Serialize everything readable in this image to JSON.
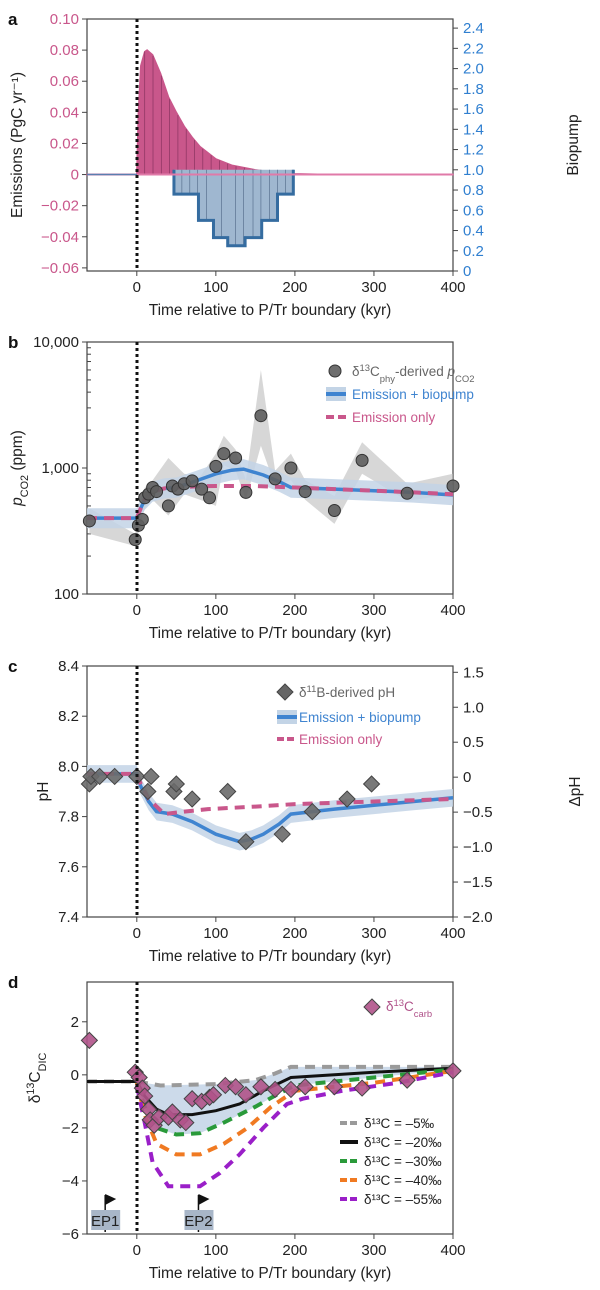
{
  "figure_colors": {
    "emission": "#c9578b",
    "biopump": "#3f84d0",
    "band": "#c3d4e6",
    "data_gray": "#5e5e5e",
    "carb": "#b0538a",
    "axis_left_a": "#c9578b",
    "axis_right_a": "#2f7fd0"
  },
  "chart_data": [
    {
      "type": "area",
      "panel_label": "a",
      "xlabel": "Time relative to P/Tr boundary (kyr)",
      "ylabel": "Emissions (PgC yr⁻¹)",
      "ylabel_right": "Biopump",
      "xlim": [
        -63,
        400
      ],
      "ylim": [
        -0.062,
        0.1
      ],
      "ylim_right": [
        0,
        2.49
      ],
      "xticks": [
        "0",
        "100",
        "200",
        "300",
        "400"
      ],
      "xtick_values": [
        0,
        100,
        200,
        300,
        400
      ],
      "yticks": [
        "0.10",
        "0.08",
        "0.06",
        "0.04",
        "0.02",
        "0",
        "−0.02",
        "−0.04",
        "−0.06"
      ],
      "ytick_values": [
        0.1,
        0.08,
        0.06,
        0.04,
        0.02,
        0,
        -0.02,
        -0.04,
        -0.06
      ],
      "yticks_right": [
        "2.4",
        "2.2",
        "2.0",
        "1.8",
        "1.6",
        "1.4",
        "1.2",
        "1.0",
        "0.8",
        "0.6",
        "0.4",
        "0.2",
        "0"
      ],
      "ytick_right_values": [
        2.4,
        2.2,
        2.0,
        1.8,
        1.6,
        1.4,
        1.2,
        1.0,
        0.8,
        0.6,
        0.4,
        0.2,
        0
      ],
      "emissions": {
        "x": [
          -63,
          0,
          2,
          5,
          10,
          13,
          20,
          30,
          40,
          50,
          60,
          70,
          80,
          100,
          120,
          150,
          180,
          200,
          250,
          400
        ],
        "y": [
          0,
          0,
          0.04,
          0.07,
          0.079,
          0.08,
          0.077,
          0.065,
          0.05,
          0.04,
          0.031,
          0.024,
          0.018,
          0.01,
          0.006,
          0.003,
          0.001,
          0.0005,
          0,
          0
        ]
      },
      "biopump_steps": {
        "edges": [
          47,
          78,
          97,
          115,
          137,
          158,
          178,
          198
        ],
        "values": [
          0.76,
          0.5,
          0.33,
          0.25,
          0.33,
          0.5,
          0.76
        ]
      },
      "biopump_baseline": 1.0
    },
    {
      "type": "scatter",
      "panel_label": "b",
      "xlabel": "Time relative to P/Tr boundary (kyr)",
      "ylabel": [
        {
          "t": "p",
          "s": "i"
        },
        {
          "t": "CO2",
          "s": "sub"
        },
        {
          "t": " (ppm)"
        }
      ],
      "yscale": "log",
      "xlim": [
        -63,
        400
      ],
      "ylim": [
        100,
        10000
      ],
      "xticks": [
        "0",
        "100",
        "200",
        "300",
        "400"
      ],
      "xtick_values": [
        0,
        100,
        200,
        300,
        400
      ],
      "yticks": [
        "10,000",
        "1,000",
        "100"
      ],
      "ytick_values": [
        10000,
        1000,
        100
      ],
      "legend": [
        {
          "marker": "circle",
          "label": [
            {
              "t": "δ"
            },
            {
              "t": "13",
              "s": "sup"
            },
            {
              "t": "C"
            },
            {
              "t": "phy",
              "s": "sub"
            },
            {
              "t": "-derived "
            },
            {
              "t": "p",
              "s": "i"
            },
            {
              "t": "CO2",
              "s": "sub"
            }
          ]
        },
        {
          "marker": "line-band",
          "label": [
            {
              "t": "Emission + biopump"
            }
          ]
        },
        {
          "marker": "dash",
          "label": [
            {
              "t": "Emission only"
            }
          ]
        }
      ],
      "data_points": {
        "x": [
          -60,
          -2,
          2,
          7,
          10,
          15,
          20,
          25,
          40,
          45,
          52,
          60,
          70,
          82,
          92,
          100,
          110,
          125,
          138,
          157,
          175,
          195,
          213,
          250,
          285,
          342,
          400
        ],
        "y": [
          380,
          270,
          350,
          390,
          580,
          620,
          700,
          650,
          500,
          720,
          680,
          750,
          790,
          680,
          580,
          1030,
          1300,
          1200,
          640,
          2600,
          820,
          1000,
          650,
          460,
          1150,
          630,
          720
        ]
      },
      "data_range": {
        "x": [
          -60,
          -2,
          10,
          20,
          40,
          60,
          80,
          100,
          110,
          125,
          138,
          157,
          175,
          195,
          213,
          250,
          285,
          342,
          400
        ],
        "low": [
          300,
          240,
          480,
          560,
          420,
          620,
          560,
          500,
          1050,
          950,
          560,
          1500,
          720,
          800,
          560,
          360,
          900,
          550,
          620
        ],
        "high": [
          480,
          300,
          700,
          800,
          1200,
          900,
          850,
          1300,
          1800,
          1400,
          800,
          6000,
          950,
          1300,
          800,
          600,
          1600,
          750,
          900
        ]
      },
      "emission_biopump": {
        "x": [
          -63,
          0,
          5,
          10,
          20,
          35,
          50,
          75,
          100,
          120,
          135,
          160,
          180,
          195,
          250,
          300,
          350,
          400
        ],
        "y": [
          400,
          400,
          480,
          560,
          650,
          690,
          700,
          790,
          900,
          960,
          980,
          880,
          780,
          700,
          680,
          660,
          640,
          610
        ]
      },
      "emission_only": {
        "x": [
          -63,
          0,
          5,
          10,
          20,
          35,
          50,
          75,
          100,
          150,
          200,
          250,
          300,
          350,
          400
        ],
        "y": [
          400,
          400,
          480,
          560,
          650,
          690,
          700,
          715,
          720,
          720,
          700,
          680,
          660,
          640,
          620
        ]
      }
    },
    {
      "type": "scatter",
      "panel_label": "c",
      "xlabel": "Time relative to P/Tr boundary (kyr)",
      "ylabel": "pH",
      "ylabel_right": "ΔpH",
      "xlim": [
        -63,
        400
      ],
      "ylim": [
        7.4,
        8.4
      ],
      "ylim_right": [
        -2.0,
        1.59
      ],
      "xticks": [
        "0",
        "100",
        "200",
        "300",
        "400"
      ],
      "xtick_values": [
        0,
        100,
        200,
        300,
        400
      ],
      "yticks": [
        "8.4",
        "8.2",
        "8.0",
        "7.8",
        "7.6",
        "7.4"
      ],
      "ytick_values": [
        8.4,
        8.2,
        8.0,
        7.8,
        7.6,
        7.4
      ],
      "yticks_right": [
        "1.5",
        "1.0",
        "0.5",
        "0",
        "−0.5",
        "−1.0",
        "−1.5",
        "−2.0"
      ],
      "ytick_right_values": [
        1.5,
        1.0,
        0.5,
        0,
        -0.5,
        -1.0,
        -1.5,
        -2.0
      ],
      "legend": [
        {
          "marker": "diamond",
          "label": [
            {
              "t": "δ"
            },
            {
              "t": "11",
              "s": "sup"
            },
            {
              "t": "B-derived pH"
            }
          ]
        },
        {
          "marker": "line-band",
          "label": [
            {
              "t": "Emission + biopump"
            }
          ]
        },
        {
          "marker": "dash",
          "label": [
            {
              "t": "Emission only"
            }
          ]
        }
      ],
      "data_points": {
        "x": [
          -60,
          -58,
          -47,
          -28,
          0,
          14,
          18,
          47,
          50,
          70,
          115,
          138,
          184,
          222,
          266,
          297
        ],
        "y": [
          7.93,
          7.96,
          7.96,
          7.96,
          7.96,
          7.9,
          7.96,
          7.9,
          7.93,
          7.87,
          7.9,
          7.7,
          7.73,
          7.82,
          7.87,
          7.93
        ]
      },
      "emission_biopump": {
        "x": [
          -63,
          0,
          5,
          15,
          25,
          45,
          70,
          100,
          130,
          145,
          160,
          180,
          195,
          250,
          300,
          350,
          400
        ],
        "y": [
          7.97,
          7.97,
          7.92,
          7.86,
          7.82,
          7.81,
          7.78,
          7.73,
          7.7,
          7.71,
          7.73,
          7.77,
          7.81,
          7.83,
          7.845,
          7.86,
          7.875
        ]
      },
      "emission_only": {
        "x": [
          -63,
          0,
          5,
          15,
          35,
          60,
          90,
          150,
          200,
          300,
          400
        ],
        "y": [
          7.97,
          7.97,
          7.93,
          7.87,
          7.81,
          7.82,
          7.83,
          7.84,
          7.85,
          7.86,
          7.87
        ]
      }
    },
    {
      "type": "line",
      "panel_label": "d",
      "xlabel": "Time relative to P/Tr boundary (kyr)",
      "ylabel": [
        {
          "t": "δ"
        },
        {
          "t": "13",
          "s": "sup"
        },
        {
          "t": "C"
        },
        {
          "t": "DIC",
          "s": "sub"
        }
      ],
      "xlim": [
        -63,
        400
      ],
      "ylim": [
        -6,
        3.5
      ],
      "xticks": [
        "0",
        "100",
        "200",
        "300",
        "400"
      ],
      "xtick_values": [
        0,
        100,
        200,
        300,
        400
      ],
      "yticks": [
        "2",
        "0",
        "−2",
        "−4",
        "−6"
      ],
      "ytick_values": [
        2,
        0,
        -2,
        -4,
        -6
      ],
      "marker_legend": [
        {
          "t": "δ"
        },
        {
          "t": "13",
          "s": "sup"
        },
        {
          "t": "C"
        },
        {
          "t": "carb",
          "s": "sub"
        }
      ],
      "data_points": {
        "x": [
          -60,
          -2,
          3,
          7,
          10,
          15,
          17,
          22,
          28,
          40,
          45,
          55,
          62,
          70,
          82,
          92,
          97,
          112,
          125,
          138,
          157,
          175,
          195,
          213,
          250,
          285,
          342,
          400
        ],
        "y": [
          1.3,
          0.1,
          -0.1,
          -0.5,
          -0.8,
          -1.3,
          -1.7,
          -1.9,
          -1.6,
          -1.6,
          -1.4,
          -1.7,
          -1.8,
          -0.9,
          -1.0,
          -0.85,
          -0.75,
          -0.4,
          -0.45,
          -0.75,
          -0.45,
          -0.55,
          -0.55,
          -0.45,
          -0.45,
          -0.5,
          -0.2,
          0.15
        ]
      },
      "series": [
        {
          "name": "δ¹³C = –5‰",
          "color": "#9a9a9a",
          "style": "dash",
          "x": [
            -63,
            0,
            10,
            30,
            60,
            100,
            150,
            175,
            195,
            250,
            300,
            400
          ],
          "y": [
            -0.25,
            -0.25,
            -0.3,
            -0.4,
            -0.38,
            -0.35,
            -0.2,
            0.05,
            0.3,
            0.3,
            0.3,
            0.3
          ]
        },
        {
          "name": "δ¹³C = –20‰",
          "color": "#111111",
          "style": "solid",
          "x": [
            -63,
            0,
            10,
            25,
            40,
            70,
            100,
            130,
            160,
            195,
            250,
            300,
            400
          ],
          "y": [
            -0.25,
            -0.25,
            -0.8,
            -1.3,
            -1.5,
            -1.5,
            -1.35,
            -1.1,
            -0.6,
            -0.1,
            0,
            0.1,
            0.25
          ]
        },
        {
          "name": "δ¹³C = –30‰",
          "color": "#2a9a3a",
          "style": "dash",
          "x": [
            0,
            10,
            25,
            50,
            80,
            110,
            150,
            180,
            200,
            250,
            300,
            400
          ],
          "y": [
            -0.3,
            -1.2,
            -2.0,
            -2.25,
            -2.2,
            -1.8,
            -1.2,
            -0.7,
            -0.4,
            -0.25,
            -0.1,
            0.2
          ]
        },
        {
          "name": "δ¹³C = –40‰",
          "color": "#f07a22",
          "style": "dash",
          "x": [
            0,
            10,
            25,
            50,
            80,
            110,
            140,
            170,
            200,
            250,
            300,
            400
          ],
          "y": [
            -0.3,
            -1.5,
            -2.6,
            -3.0,
            -3.0,
            -2.6,
            -2.0,
            -1.2,
            -0.6,
            -0.45,
            -0.3,
            0.15
          ]
        },
        {
          "name": "δ¹³C = –55‰",
          "color": "#9a1fc8",
          "style": "dash",
          "x": [
            0,
            10,
            20,
            40,
            80,
            105,
            130,
            160,
            190,
            210,
            260,
            330,
            400
          ],
          "y": [
            -0.4,
            -1.8,
            -3.3,
            -4.2,
            -4.2,
            -3.7,
            -3.0,
            -2.0,
            -1.1,
            -0.9,
            -0.6,
            -0.3,
            0.1
          ]
        }
      ],
      "flags": [
        {
          "label": "EP1",
          "x": -40
        },
        {
          "label": "EP2",
          "x": 78
        }
      ]
    }
  ]
}
